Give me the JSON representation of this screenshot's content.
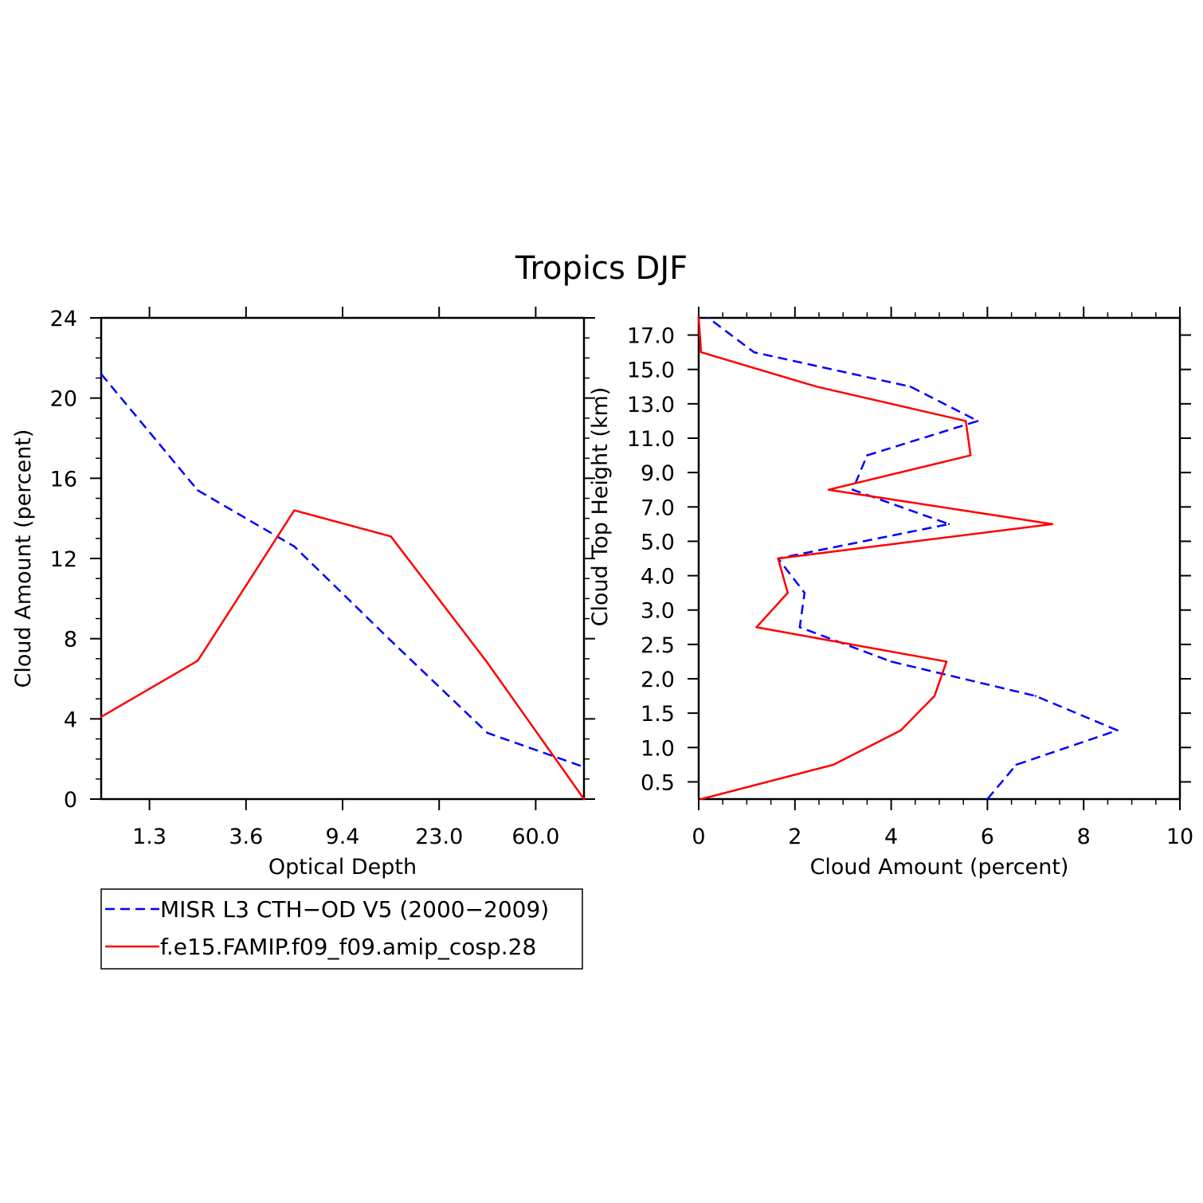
{
  "title": "Tropics DJF",
  "colors": {
    "obs": "#0000ff",
    "model": "#ff0000",
    "axis": "#000000"
  },
  "legend": {
    "items": [
      {
        "label": "MISR L3 CTH−OD V5 (2000−2009)",
        "color": "#0000ff",
        "style": "dashed"
      },
      {
        "label": "f.e15.FAMIP.f09_f09.amip_cosp.28",
        "color": "#ff0000",
        "style": "solid"
      }
    ]
  },
  "chart_data": [
    {
      "type": "line",
      "name": "left",
      "xlabel": "Optical Depth",
      "ylabel": "Cloud Amount (percent)",
      "x_positions": [
        0,
        1,
        2,
        3,
        4,
        5
      ],
      "xlim": [
        0,
        5
      ],
      "xtick_positions": [
        0.5,
        1.5,
        2.5,
        3.5,
        4.5
      ],
      "xtick_labels": [
        "1.3",
        "3.6",
        "9.4",
        "23.0",
        "60.0"
      ],
      "ylim": [
        0,
        24
      ],
      "yticks": [
        0,
        4,
        8,
        12,
        16,
        20,
        24
      ],
      "ytick_labels": [
        "0",
        "4",
        "8",
        "12",
        "16",
        "20",
        "24"
      ],
      "series": [
        {
          "name": "MISR L3 CTH−OD V5 (2000−2009)",
          "values": [
            21.2,
            15.4,
            12.6,
            7.9,
            3.3,
            1.6
          ]
        },
        {
          "name": "f.e15.FAMIP.f09_f09.amip_cosp.28",
          "values": [
            4.1,
            6.9,
            14.4,
            13.1,
            6.8,
            0.0
          ]
        }
      ]
    },
    {
      "type": "line",
      "name": "right",
      "xlabel": "Cloud Amount (percent)",
      "ylabel": "Cloud Top Height (km)",
      "xlim": [
        0,
        10
      ],
      "xticks": [
        0,
        2,
        4,
        6,
        8,
        10
      ],
      "xtick_labels": [
        "0",
        "2",
        "4",
        "6",
        "8",
        "10"
      ],
      "y_positions": [
        0,
        1,
        2,
        3,
        4,
        5,
        6,
        7,
        8,
        9,
        10,
        11,
        12,
        13,
        14
      ],
      "ylim": [
        0,
        14
      ],
      "ytick_positions": [
        0.5,
        1.5,
        2.5,
        3.5,
        4.5,
        5.5,
        6.5,
        7.5,
        8.5,
        9.5,
        10.5,
        11.5,
        12.5,
        13.5
      ],
      "ytick_labels": [
        "0.5",
        "1.0",
        "1.5",
        "2.0",
        "2.5",
        "3.0",
        "4.0",
        "5.0",
        "7.0",
        "9.0",
        "11.0",
        "13.0",
        "15.0",
        "17.0"
      ],
      "series": [
        {
          "name": "MISR L3 CTH−OD V5 (2000−2009)",
          "values": [
            6.0,
            6.6,
            8.7,
            7.0,
            4.0,
            2.1,
            2.2,
            1.65,
            5.2,
            3.2,
            3.5,
            5.8,
            4.4,
            1.15,
            0.2
          ]
        },
        {
          "name": "f.e15.FAMIP.f09_f09.amip_cosp.28",
          "values": [
            0.05,
            2.8,
            4.2,
            4.9,
            5.15,
            1.2,
            1.85,
            1.65,
            7.35,
            2.7,
            5.65,
            5.55,
            2.45,
            0.05,
            0.0
          ]
        }
      ]
    }
  ]
}
